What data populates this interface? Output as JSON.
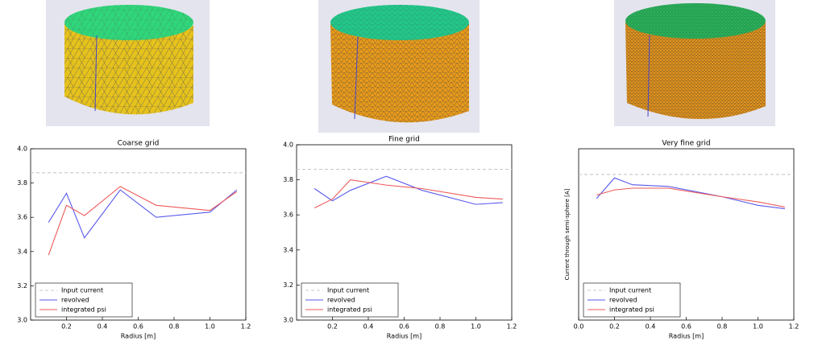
{
  "chart_data": [
    {
      "type": "line",
      "title": "Coarse grid",
      "xlabel": "Radius [m]",
      "xlim": [
        0,
        1.2
      ],
      "xticks": [
        0.2,
        0.4,
        0.6,
        0.8,
        {
          "value": 1,
          "label": "1.0"
        },
        1.2
      ],
      "ylim": [
        3,
        4
      ],
      "yticks": [
        {
          "value": 3,
          "label": "3.0"
        },
        3.2,
        3.4,
        3.6,
        3.8,
        {
          "value": 4,
          "label": "4.0"
        }
      ],
      "legend": "lower left",
      "series": [
        {
          "name": "Input current",
          "color": "#c8c8c8",
          "dashed": true,
          "x": [
            0,
            1.2
          ],
          "values": [
            3.86,
            3.86
          ]
        },
        {
          "name": "revolved",
          "color": "#5a5aee",
          "x": [
            0.1,
            0.2,
            0.3,
            0.5,
            0.7,
            1.0,
            1.15
          ],
          "values": [
            3.57,
            3.74,
            3.48,
            3.76,
            3.6,
            3.63,
            3.76
          ]
        },
        {
          "name": "integrated psi",
          "color": "#ee5a5a",
          "x": [
            0.1,
            0.2,
            0.3,
            0.5,
            0.7,
            1.0,
            1.15
          ],
          "values": [
            3.38,
            3.67,
            3.61,
            3.78,
            3.67,
            3.64,
            3.75
          ]
        }
      ]
    },
    {
      "type": "line",
      "title": "Fine grid",
      "xlabel": "Radius [m]",
      "xlim": [
        0,
        1.2
      ],
      "xticks": [
        0.2,
        0.4,
        0.6,
        0.8,
        {
          "value": 1,
          "label": "1.0"
        },
        1.2
      ],
      "ylim": [
        3,
        4
      ],
      "yticks": [
        {
          "value": 3,
          "label": "3.0"
        },
        3.2,
        3.4,
        3.6,
        3.8,
        {
          "value": 4,
          "label": "4.0"
        }
      ],
      "legend": "lower left",
      "series": [
        {
          "name": "Input current",
          "color": "#c8c8c8",
          "dashed": true,
          "x": [
            0,
            1.2
          ],
          "values": [
            3.86,
            3.86
          ]
        },
        {
          "name": "revolved",
          "color": "#5a5aee",
          "x": [
            0.1,
            0.2,
            0.3,
            0.5,
            0.7,
            1.0,
            1.15
          ],
          "values": [
            3.75,
            3.68,
            3.74,
            3.82,
            3.74,
            3.66,
            3.67
          ]
        },
        {
          "name": "integrated psi",
          "color": "#ee5a5a",
          "x": [
            0.1,
            0.2,
            0.3,
            0.5,
            0.7,
            1.0,
            1.15
          ],
          "values": [
            3.64,
            3.69,
            3.8,
            3.77,
            3.75,
            3.7,
            3.69
          ]
        }
      ]
    },
    {
      "type": "line",
      "title": "Very fine grid",
      "xlabel": "Radius [m]",
      "ylabel": "Current through semi-sphere [A]",
      "xlim": [
        0,
        1.2
      ],
      "xticks": [
        {
          "value": 0,
          "label": "0.0"
        },
        0.2,
        0.4,
        0.6,
        0.8,
        {
          "value": 1,
          "label": "1.0"
        },
        1.2
      ],
      "ylim": [
        3,
        4
      ],
      "yticks": [],
      "legend": "lower left",
      "series": [
        {
          "name": "Input current",
          "color": "#c8c8c8",
          "dashed": true,
          "x": [
            0,
            1.2
          ],
          "values": [
            3.85,
            3.85
          ]
        },
        {
          "name": "revolved",
          "color": "#5a5aee",
          "x": [
            0.1,
            0.2,
            0.3,
            0.5,
            0.8,
            1.0,
            1.15
          ],
          "values": [
            3.71,
            3.83,
            3.79,
            3.78,
            3.72,
            3.67,
            3.65
          ]
        },
        {
          "name": "integrated psi",
          "color": "#ee5a5a",
          "x": [
            0.1,
            0.2,
            0.3,
            0.5,
            0.8,
            1.0,
            1.15
          ],
          "values": [
            3.73,
            3.76,
            3.77,
            3.77,
            3.72,
            3.69,
            3.66
          ]
        }
      ]
    }
  ]
}
